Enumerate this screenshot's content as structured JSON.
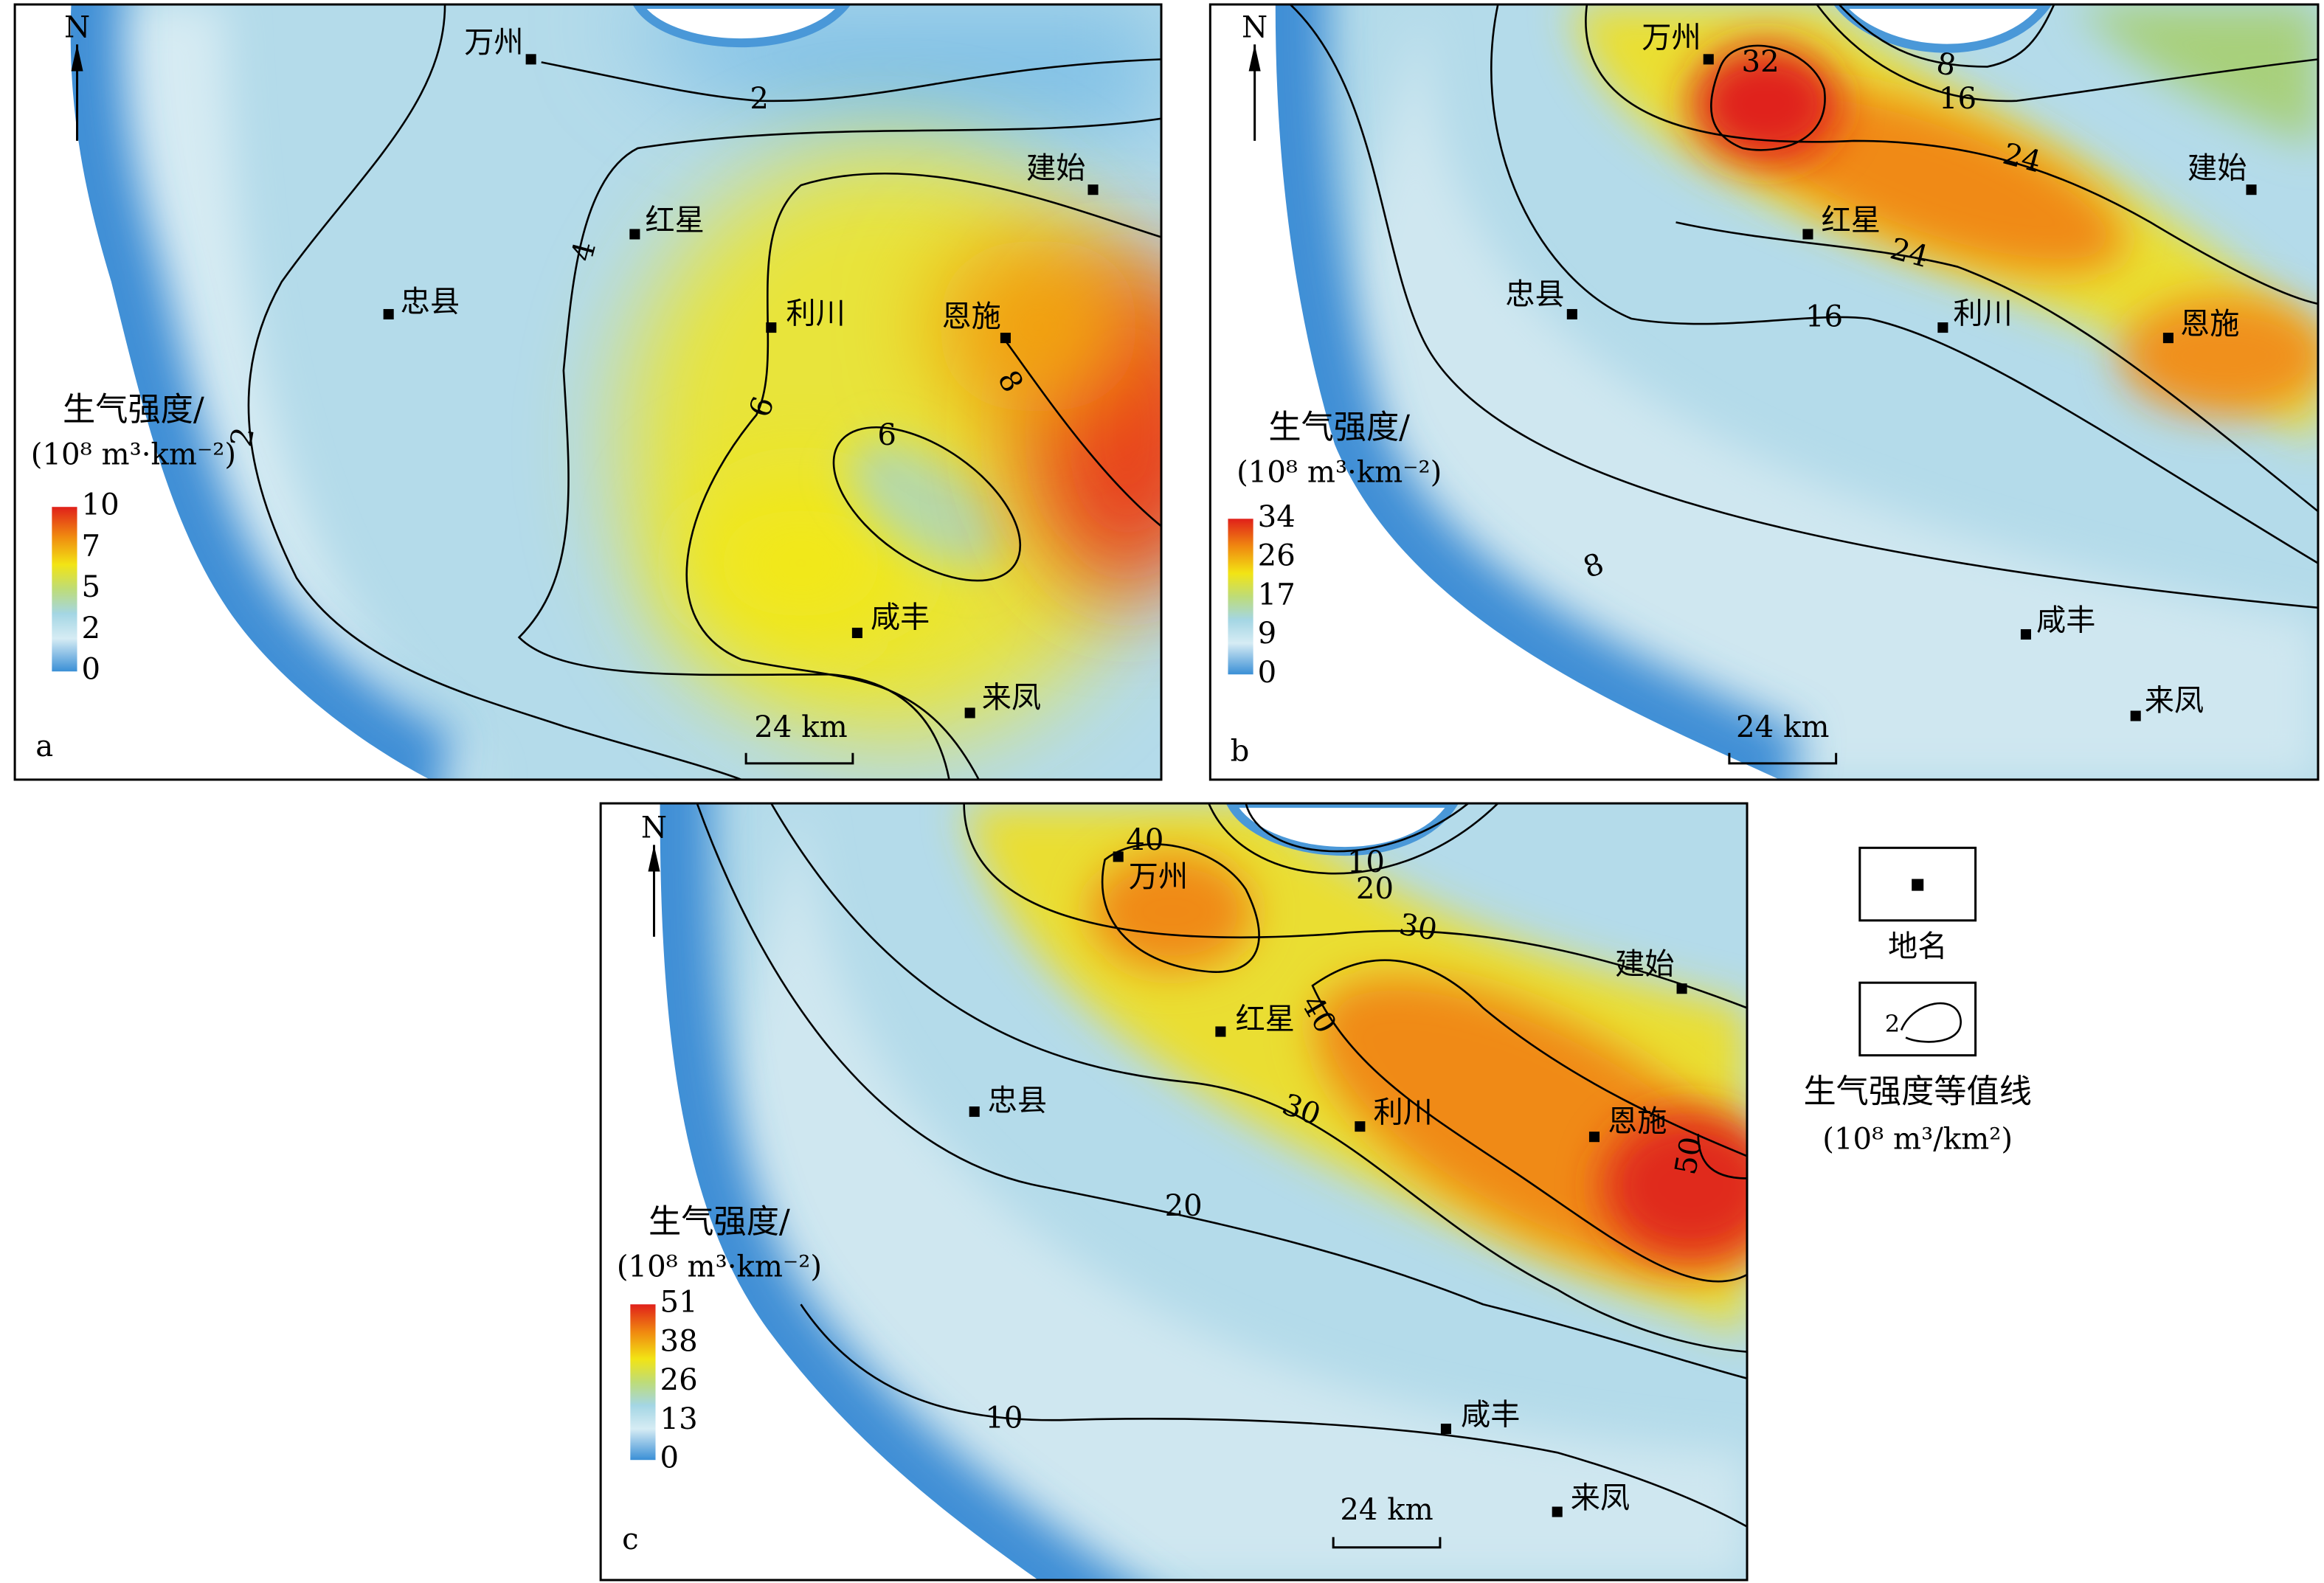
{
  "panels": [
    {
      "letter": "a",
      "north": "N",
      "places": [
        "万州",
        "红星",
        "忠县",
        "利川",
        "恩施",
        "建始",
        "咸丰",
        "来凤"
      ],
      "contour_labels": [
        2,
        4,
        2,
        6,
        6,
        8
      ],
      "legend_title": "生气强度/",
      "legend_unit": "(10⁸ m³·km⁻²)",
      "colorbar_ticks": [
        10,
        7,
        5,
        2,
        0
      ],
      "scale_bar": "24 km"
    },
    {
      "letter": "b",
      "north": "N",
      "places": [
        "万州",
        "建始",
        "红星",
        "忠县",
        "利川",
        "恩施",
        "咸丰",
        "来凤"
      ],
      "contour_labels": [
        32,
        8,
        16,
        24,
        24,
        16,
        8
      ],
      "legend_title": "生气强度/",
      "legend_unit": "(10⁸ m³·km⁻²)",
      "colorbar_ticks": [
        34,
        26,
        17,
        9,
        0
      ],
      "scale_bar": "24 km"
    },
    {
      "letter": "c",
      "north": "N",
      "places": [
        "万州",
        "建始",
        "红星",
        "忠县",
        "利川",
        "恩施",
        "咸丰",
        "来凤"
      ],
      "contour_labels": [
        40,
        10,
        20,
        30,
        40,
        30,
        20,
        10,
        50
      ],
      "legend_title": "生气强度/",
      "legend_unit": "(10⁸ m³·km⁻²)",
      "colorbar_ticks": [
        51,
        38,
        26,
        13,
        0
      ],
      "scale_bar": "24 km"
    }
  ],
  "legend": {
    "place_symbol": "地名",
    "contour_symbol": "生气强度等值线",
    "contour_unit": "(10⁸ m³/km²)",
    "contour_example": 2
  }
}
